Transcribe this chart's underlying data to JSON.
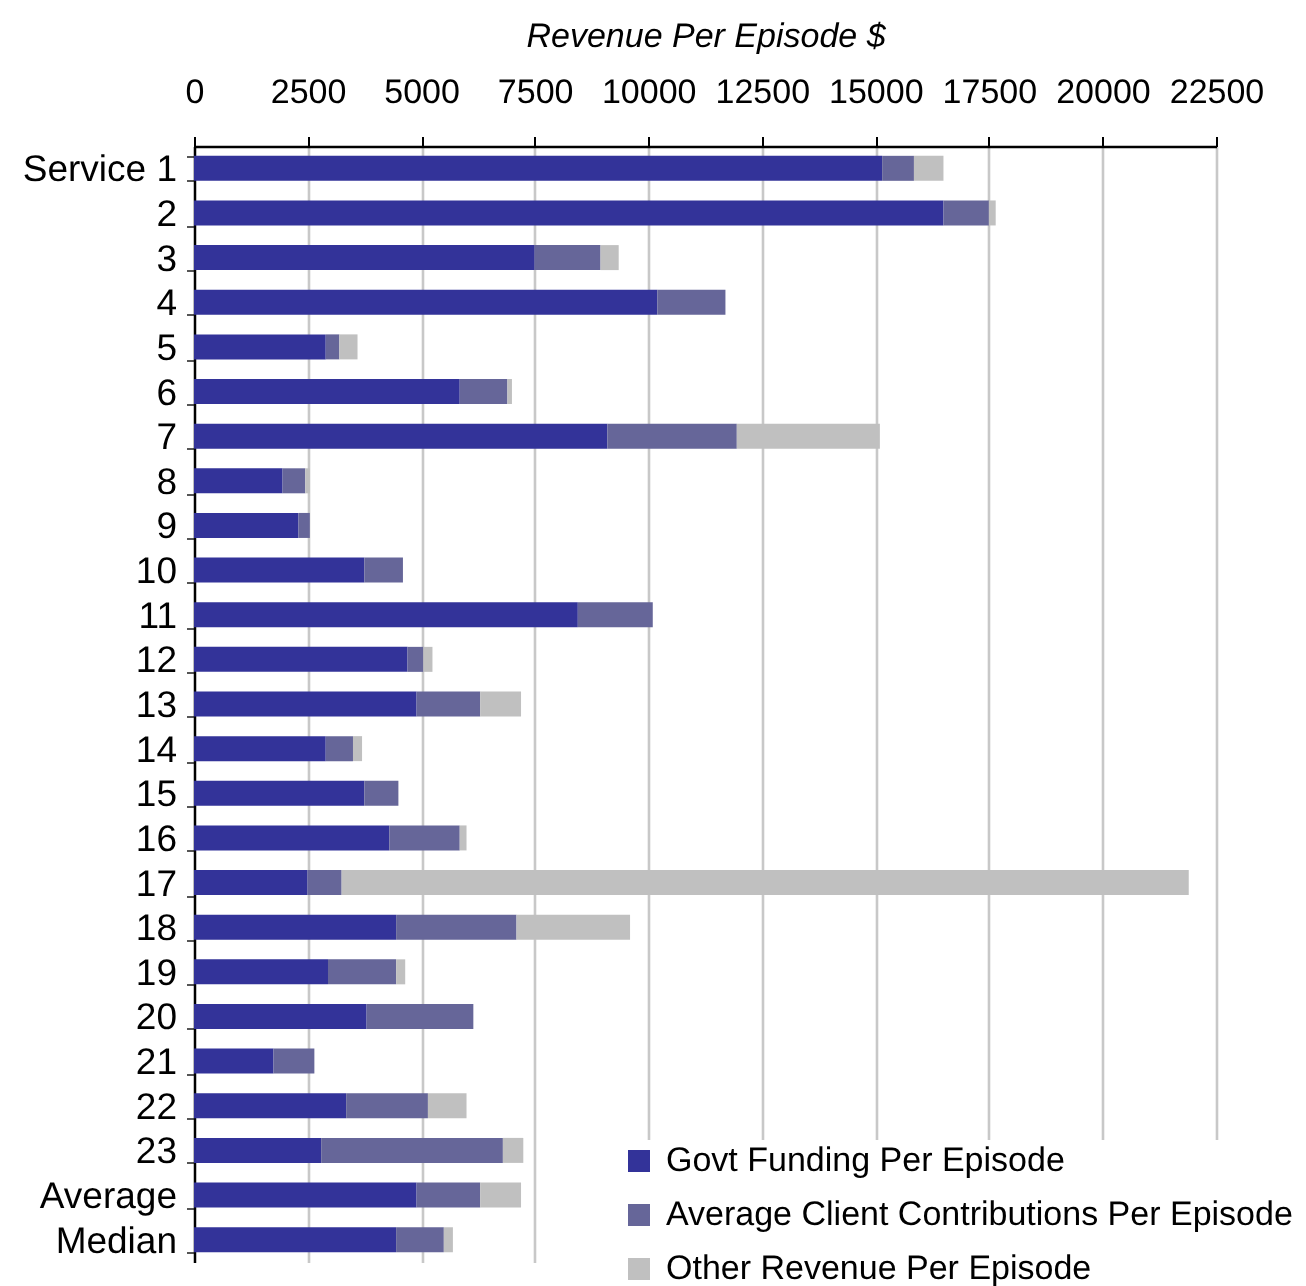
{
  "chart_data": {
    "type": "bar",
    "orientation": "horizontal",
    "stacked": true,
    "xlabel": "Revenue Per Episode $",
    "categories": [
      "Service 1",
      "2",
      "3",
      "4",
      "5",
      "6",
      "7",
      "8",
      "9",
      "10",
      "11",
      "12",
      "13",
      "14",
      "15",
      "16",
      "17",
      "18",
      "19",
      "20",
      "21",
      "22",
      "23",
      "Average",
      "Median"
    ],
    "series": [
      {
        "name": "Govt Funding Per Episode",
        "color": "#333399",
        "values": [
          15150,
          16500,
          7500,
          10200,
          2900,
          5850,
          9100,
          1950,
          2300,
          3750,
          8450,
          4700,
          4900,
          2900,
          3750,
          4300,
          2500,
          4450,
          2950,
          3800,
          1750,
          3350,
          2800,
          4900,
          4450
        ]
      },
      {
        "name": "Average Client Contributions Per Episode",
        "color": "#666699",
        "values": [
          700,
          1000,
          1450,
          1500,
          300,
          1050,
          2850,
          500,
          250,
          850,
          1650,
          350,
          1400,
          600,
          750,
          1550,
          750,
          2650,
          1500,
          2350,
          900,
          1800,
          4000,
          1400,
          1050
        ]
      },
      {
        "name": "Other Revenue Per Episode",
        "color": "#c0c0c0",
        "values": [
          650,
          150,
          400,
          null,
          400,
          100,
          3150,
          100,
          null,
          null,
          null,
          200,
          900,
          200,
          null,
          150,
          18650,
          2500,
          200,
          null,
          null,
          850,
          450,
          900,
          200
        ]
      }
    ],
    "xlim": [
      0,
      22500
    ],
    "xticks": [
      0,
      2500,
      5000,
      7500,
      10000,
      12500,
      15000,
      17500,
      20000,
      22500
    ],
    "grid": "x",
    "legend": "bottom right"
  }
}
